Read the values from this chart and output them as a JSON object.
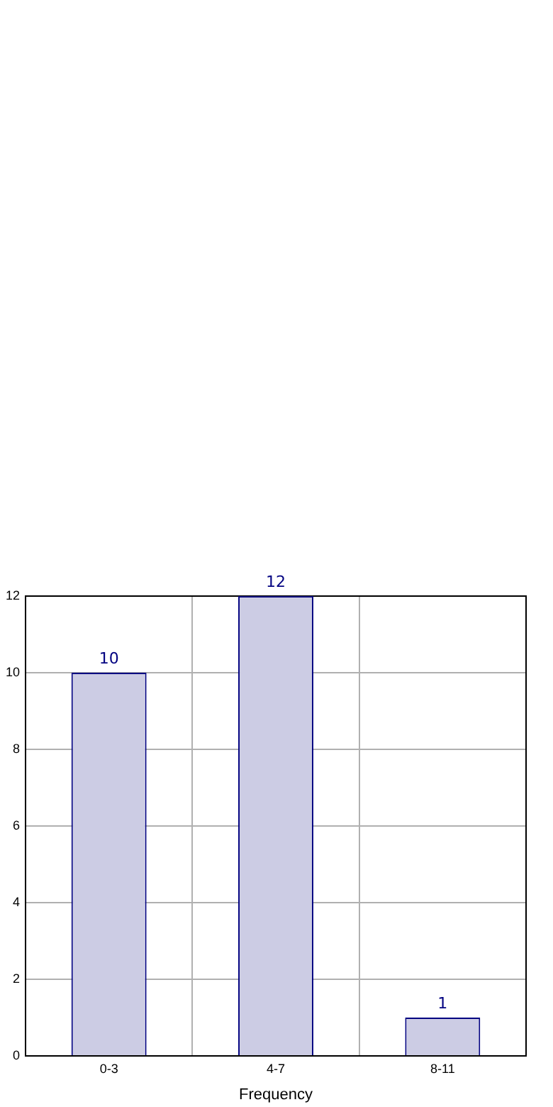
{
  "chart_data": {
    "type": "bar",
    "xlabel": "Frequency",
    "categories": [
      "0-3",
      "4-7",
      "8-11"
    ],
    "values": [
      10,
      12,
      1
    ],
    "color": "#cccce4",
    "ylim": [
      0,
      12
    ],
    "yticks": [
      0,
      2,
      4,
      6,
      8,
      10,
      12
    ],
    "grid": true,
    "data_labels": true,
    "legend": false
  }
}
